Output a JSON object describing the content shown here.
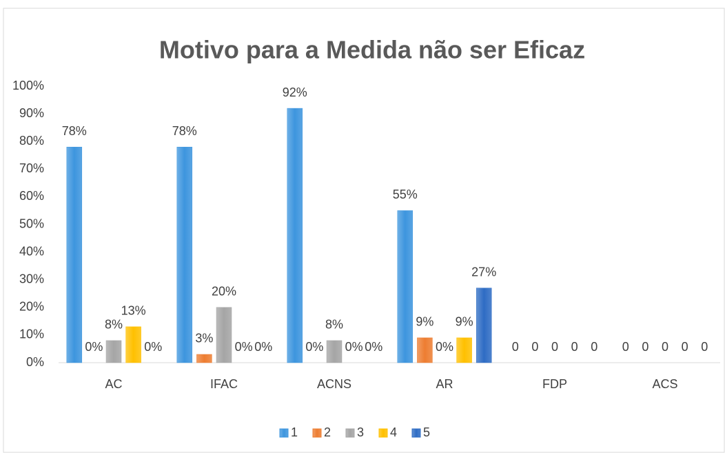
{
  "chart_data": {
    "type": "bar",
    "title": "Motivo para a Medida não ser Eficaz",
    "categories": [
      "AC",
      "IFAC",
      "ACNS",
      "AR",
      "FDP",
      "ACS"
    ],
    "series": [
      {
        "name": "1",
        "color": "#3d95de",
        "values": [
          78,
          78,
          92,
          55,
          0,
          0
        ],
        "value_labels": [
          "78%",
          "78%",
          "92%",
          "55%",
          "0",
          "0"
        ]
      },
      {
        "name": "2",
        "color": "#ed7d31",
        "values": [
          0,
          3,
          0,
          9,
          0,
          0
        ],
        "value_labels": [
          "0%",
          "3%",
          "0%",
          "9%",
          "0",
          "0"
        ]
      },
      {
        "name": "3",
        "color": "#a5a5a5",
        "values": [
          8,
          20,
          8,
          0,
          0,
          0
        ],
        "value_labels": [
          "8%",
          "20%",
          "8%",
          "0%",
          "0",
          "0"
        ]
      },
      {
        "name": "4",
        "color": "#ffc000",
        "values": [
          13,
          0,
          0,
          9,
          0,
          0
        ],
        "value_labels": [
          "13%",
          "0%",
          "0%",
          "9%",
          "0",
          "0"
        ]
      },
      {
        "name": "5",
        "color": "#2e6cc4",
        "values": [
          0,
          0,
          0,
          27,
          0,
          0
        ],
        "value_labels": [
          "0%",
          "0%",
          "0%",
          "27%",
          "0",
          "0"
        ]
      }
    ],
    "ylim": [
      0,
      100
    ],
    "yticks": [
      {
        "value": 0,
        "label": "0%"
      },
      {
        "value": 10,
        "label": "10%"
      },
      {
        "value": 20,
        "label": "20%"
      },
      {
        "value": 30,
        "label": "30%"
      },
      {
        "value": 40,
        "label": "40%"
      },
      {
        "value": 50,
        "label": "50%"
      },
      {
        "value": 60,
        "label": "60%"
      },
      {
        "value": 70,
        "label": "70%"
      },
      {
        "value": 80,
        "label": "80%"
      },
      {
        "value": 90,
        "label": "90%"
      },
      {
        "value": 100,
        "label": "100%"
      }
    ],
    "grid": false,
    "legend": "bottom"
  }
}
